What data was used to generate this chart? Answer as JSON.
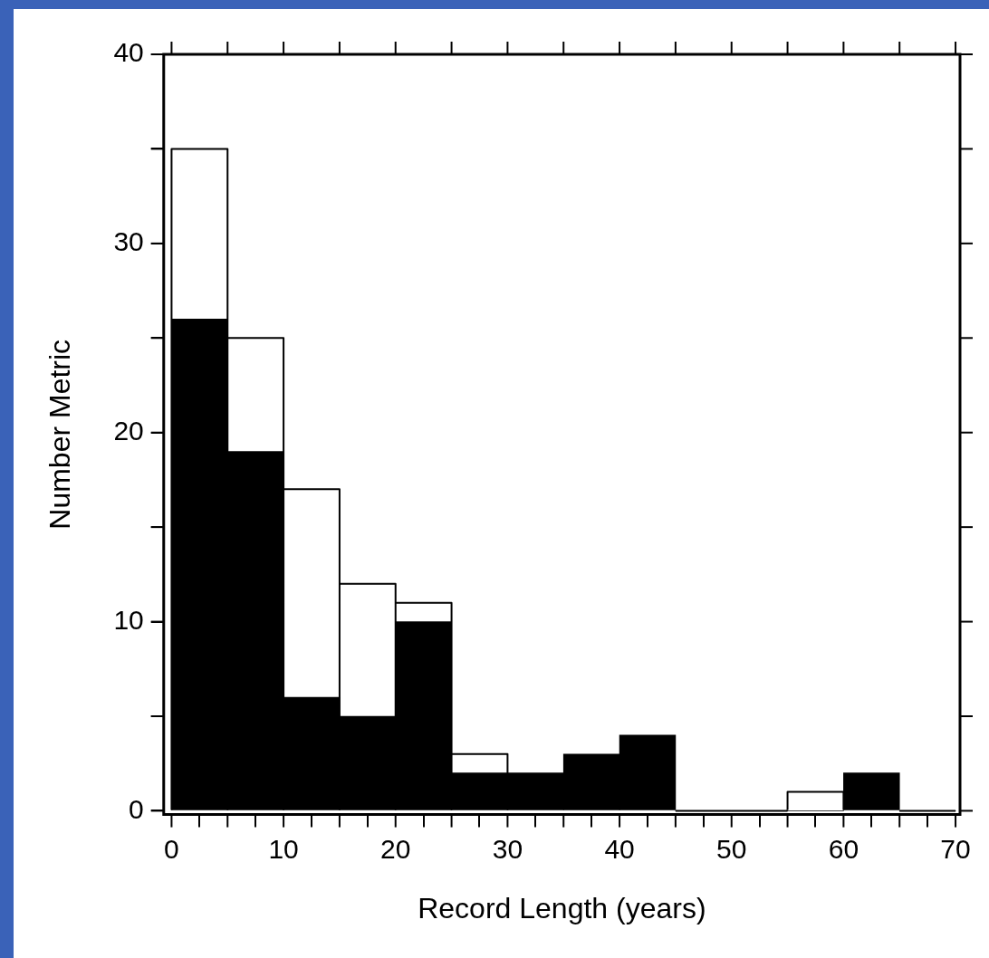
{
  "chart_data": {
    "type": "histogram",
    "xlabel": "Record Length (years)",
    "ylabel": "Number Metric",
    "bins": [
      0,
      5,
      10,
      15,
      20,
      25,
      30,
      35,
      40,
      45,
      50,
      55,
      60,
      65,
      70
    ],
    "series": [
      {
        "color": "#ffffff",
        "values": [
          35,
          25,
          17,
          12,
          11,
          3,
          null,
          null,
          null,
          0,
          0,
          1,
          null,
          0
        ]
      },
      {
        "color": "#000000",
        "values": [
          26,
          19,
          6,
          5,
          10,
          2,
          2,
          3,
          4,
          0,
          0,
          0,
          2,
          0
        ]
      }
    ],
    "xlim": [
      -0.7,
      70.4
    ],
    "ylim": [
      -0.2,
      40
    ],
    "xticks": [
      0,
      {
        "value": 5,
        "label": null
      },
      10,
      {
        "value": 15,
        "label": null
      },
      20,
      {
        "value": 25,
        "label": null
      },
      30,
      {
        "value": 35,
        "label": null
      },
      40,
      {
        "value": 45,
        "label": null
      },
      50,
      {
        "value": 55,
        "label": null
      },
      60,
      {
        "value": 65,
        "label": null
      },
      70
    ],
    "yticks": [
      0,
      {
        "value": 5,
        "label": null
      },
      10,
      {
        "value": 15,
        "label": null
      },
      20,
      {
        "value": 25,
        "label": null
      },
      30,
      {
        "value": 35,
        "label": null
      },
      40
    ],
    "grid": false,
    "legend": false
  }
}
